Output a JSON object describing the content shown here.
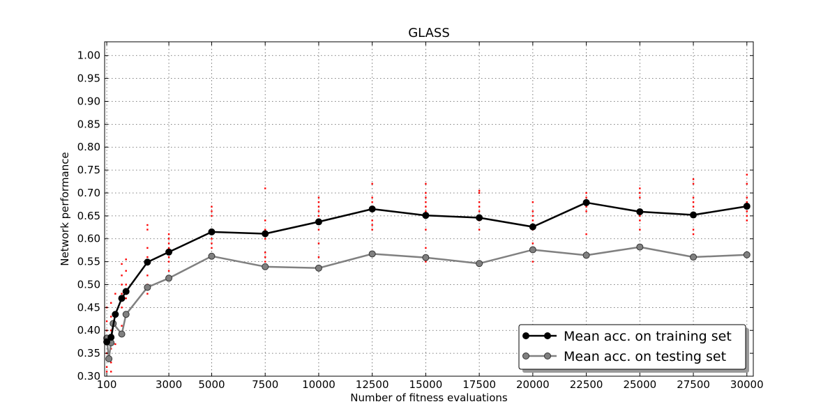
{
  "chart_data": {
    "type": "line",
    "title": "GLASS",
    "xlabel": "Number of fitness evaluations",
    "ylabel": "Network performance",
    "xlim": [
      0,
      30300
    ],
    "ylim": [
      0.3,
      1.03
    ],
    "xticks": [
      100,
      3000,
      5000,
      7500,
      10000,
      12500,
      15000,
      17500,
      20000,
      22500,
      25000,
      27500,
      30000
    ],
    "yticks": [
      "0.30",
      "0.35",
      "0.40",
      "0.45",
      "0.50",
      "0.55",
      "0.60",
      "0.65",
      "0.70",
      "0.75",
      "0.80",
      "0.85",
      "0.90",
      "0.95",
      "1.00"
    ],
    "grid": true,
    "legend_position": "lower-right",
    "series": [
      {
        "name": "Mean acc. on training set",
        "color": "#000000",
        "x": [
          100,
          300,
          500,
          800,
          1000,
          2000,
          3000,
          5000,
          7500,
          10000,
          12500,
          15000,
          17500,
          20000,
          22500,
          25000,
          27500,
          30000
        ],
        "values": [
          0.375,
          0.385,
          0.435,
          0.47,
          0.485,
          0.549,
          0.571,
          0.615,
          0.611,
          0.637,
          0.665,
          0.651,
          0.646,
          0.626,
          0.679,
          0.659,
          0.652,
          0.671
        ]
      },
      {
        "name": "Mean acc. on testing set",
        "color": "#808080",
        "x": [
          100,
          200,
          300,
          400,
          800,
          1000,
          2000,
          3000,
          5000,
          7500,
          10000,
          12500,
          15000,
          17500,
          20000,
          22500,
          25000,
          27500,
          30000
        ],
        "values": [
          0.383,
          0.338,
          0.373,
          0.415,
          0.392,
          0.435,
          0.494,
          0.514,
          0.562,
          0.539,
          0.536,
          0.567,
          0.559,
          0.546,
          0.576,
          0.564,
          0.582,
          0.56,
          0.565
        ]
      }
    ],
    "samples": {
      "color": "#ff0000",
      "points": [
        [
          100,
          0.31
        ],
        [
          100,
          0.32
        ],
        [
          100,
          0.35
        ],
        [
          100,
          0.38
        ],
        [
          100,
          0.4
        ],
        [
          100,
          0.42
        ],
        [
          100,
          0.45
        ],
        [
          300,
          0.31
        ],
        [
          300,
          0.33
        ],
        [
          300,
          0.36
        ],
        [
          300,
          0.4
        ],
        [
          300,
          0.43
        ],
        [
          300,
          0.46
        ],
        [
          500,
          0.37
        ],
        [
          500,
          0.41
        ],
        [
          500,
          0.44
        ],
        [
          500,
          0.48
        ],
        [
          800,
          0.41
        ],
        [
          800,
          0.45
        ],
        [
          800,
          0.48
        ],
        [
          800,
          0.5
        ],
        [
          800,
          0.52
        ],
        [
          800,
          0.545
        ],
        [
          1000,
          0.44
        ],
        [
          1000,
          0.47
        ],
        [
          1000,
          0.48
        ],
        [
          1000,
          0.5
        ],
        [
          1000,
          0.53
        ],
        [
          1000,
          0.555
        ],
        [
          2000,
          0.48
        ],
        [
          2000,
          0.5
        ],
        [
          2000,
          0.52
        ],
        [
          2000,
          0.55
        ],
        [
          2000,
          0.56
        ],
        [
          2000,
          0.58
        ],
        [
          2000,
          0.62
        ],
        [
          2000,
          0.63
        ],
        [
          3000,
          0.53
        ],
        [
          3000,
          0.55
        ],
        [
          3000,
          0.56
        ],
        [
          3000,
          0.57
        ],
        [
          3000,
          0.58
        ],
        [
          3000,
          0.59
        ],
        [
          3000,
          0.6
        ],
        [
          3000,
          0.61
        ],
        [
          5000,
          0.58
        ],
        [
          5000,
          0.59
        ],
        [
          5000,
          0.6
        ],
        [
          5000,
          0.61
        ],
        [
          5000,
          0.62
        ],
        [
          5000,
          0.65
        ],
        [
          5000,
          0.66
        ],
        [
          5000,
          0.67
        ],
        [
          7500,
          0.55
        ],
        [
          7500,
          0.56
        ],
        [
          7500,
          0.57
        ],
        [
          7500,
          0.6
        ],
        [
          7500,
          0.62
        ],
        [
          7500,
          0.64
        ],
        [
          7500,
          0.71
        ],
        [
          10000,
          0.56
        ],
        [
          10000,
          0.59
        ],
        [
          10000,
          0.62
        ],
        [
          10000,
          0.64
        ],
        [
          10000,
          0.65
        ],
        [
          10000,
          0.66
        ],
        [
          10000,
          0.67
        ],
        [
          10000,
          0.68
        ],
        [
          10000,
          0.69
        ],
        [
          12500,
          0.62
        ],
        [
          12500,
          0.63
        ],
        [
          12500,
          0.64
        ],
        [
          12500,
          0.66
        ],
        [
          12500,
          0.67
        ],
        [
          12500,
          0.68
        ],
        [
          12500,
          0.69
        ],
        [
          12500,
          0.72
        ],
        [
          15000,
          0.55
        ],
        [
          15000,
          0.58
        ],
        [
          15000,
          0.62
        ],
        [
          15000,
          0.65
        ],
        [
          15000,
          0.66
        ],
        [
          15000,
          0.67
        ],
        [
          15000,
          0.68
        ],
        [
          15000,
          0.69
        ],
        [
          15000,
          0.7
        ],
        [
          15000,
          0.72
        ],
        [
          17500,
          0.62
        ],
        [
          17500,
          0.64
        ],
        [
          17500,
          0.65
        ],
        [
          17500,
          0.66
        ],
        [
          17500,
          0.67
        ],
        [
          17500,
          0.68
        ],
        [
          17500,
          0.7
        ],
        [
          17500,
          0.705
        ],
        [
          20000,
          0.55
        ],
        [
          20000,
          0.59
        ],
        [
          20000,
          0.62
        ],
        [
          20000,
          0.63
        ],
        [
          20000,
          0.64
        ],
        [
          20000,
          0.65
        ],
        [
          20000,
          0.66
        ],
        [
          20000,
          0.68
        ],
        [
          22500,
          0.61
        ],
        [
          22500,
          0.66
        ],
        [
          22500,
          0.67
        ],
        [
          22500,
          0.68
        ],
        [
          22500,
          0.69
        ],
        [
          22500,
          0.7
        ],
        [
          25000,
          0.62
        ],
        [
          25000,
          0.64
        ],
        [
          25000,
          0.65
        ],
        [
          25000,
          0.66
        ],
        [
          25000,
          0.69
        ],
        [
          25000,
          0.7
        ],
        [
          25000,
          0.71
        ],
        [
          27500,
          0.61
        ],
        [
          27500,
          0.62
        ],
        [
          27500,
          0.65
        ],
        [
          27500,
          0.67
        ],
        [
          27500,
          0.68
        ],
        [
          27500,
          0.69
        ],
        [
          27500,
          0.72
        ],
        [
          27500,
          0.73
        ],
        [
          30000,
          0.64
        ],
        [
          30000,
          0.65
        ],
        [
          30000,
          0.66
        ],
        [
          30000,
          0.67
        ],
        [
          30000,
          0.68
        ],
        [
          30000,
          0.69
        ],
        [
          30000,
          0.72
        ],
        [
          30000,
          0.74
        ]
      ]
    }
  }
}
